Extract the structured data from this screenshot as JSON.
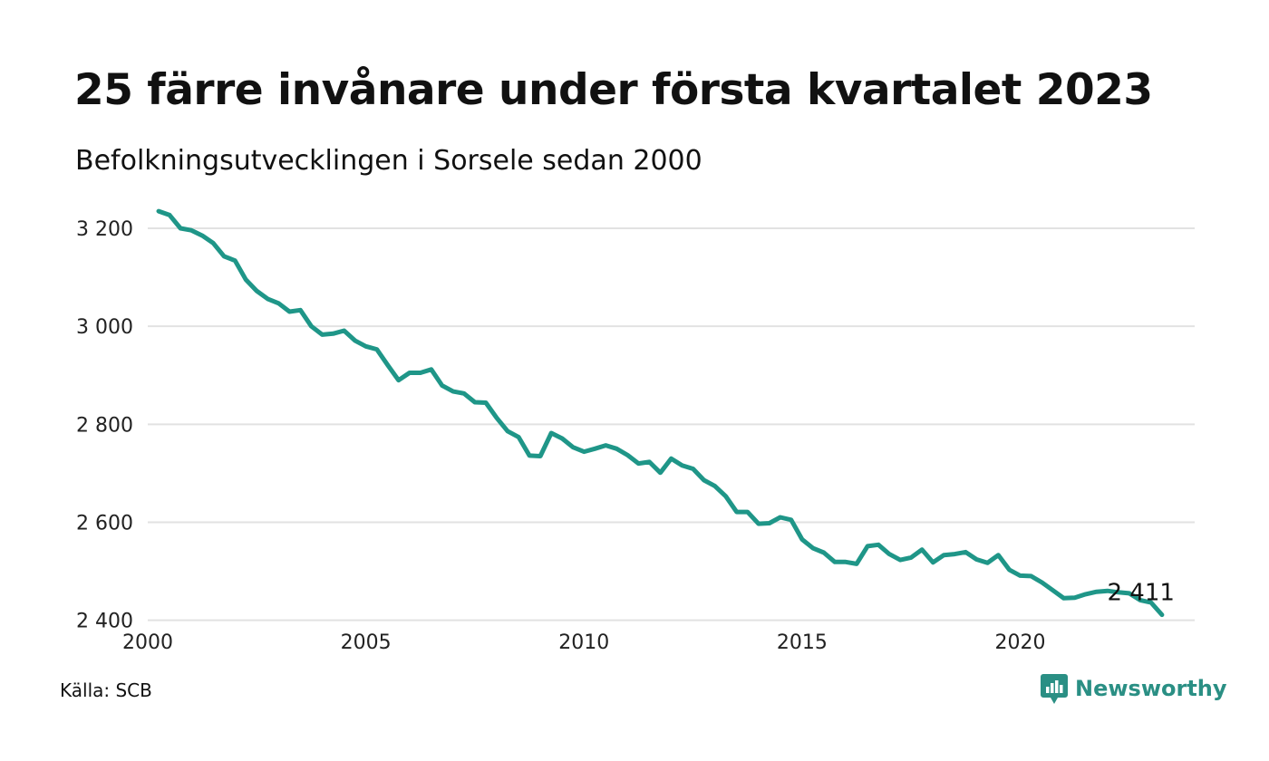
{
  "header": {
    "title": "25 färre invånare under första kvartalet 2023",
    "subtitle": "Befolkningsutvecklingen i Sorsele sedan 2000"
  },
  "footer": {
    "source": "Källa: SCB",
    "brand": "Newsworthy",
    "brand_icon": "newsworthy-logo-icon"
  },
  "colors": {
    "line": "#1f9688",
    "grid": "#e2e2e2",
    "brand": "#2a8f84"
  },
  "chart_data": {
    "type": "line",
    "title": "25 färre invånare under första kvartalet 2023",
    "subtitle": "Befolkningsutvecklingen i Sorsele sedan 2000",
    "xlabel": "",
    "ylabel": "",
    "xlim": [
      2000,
      2024
    ],
    "ylim": [
      2390,
      3250
    ],
    "x_ticks": [
      2000,
      2005,
      2010,
      2015,
      2020
    ],
    "x_tick_labels": [
      "2000",
      "2005",
      "2010",
      "2015",
      "2020"
    ],
    "y_ticks": [
      2400,
      2600,
      2800,
      3000,
      3200
    ],
    "y_tick_labels": [
      "2 400",
      "2 600",
      "2 800",
      "3 000",
      "3 200"
    ],
    "grid": "horizontal",
    "legend": "none",
    "end_label": "2 411",
    "series": [
      {
        "x": [
          2000.25,
          2000.5,
          2000.75,
          2001.0,
          2001.25,
          2001.5,
          2001.75,
          2002.0,
          2002.25,
          2002.5,
          2002.75,
          2003.0,
          2003.25,
          2003.5,
          2003.75,
          2004.0,
          2004.25,
          2004.5,
          2004.75,
          2005.0,
          2005.25,
          2005.5,
          2005.75,
          2006.0,
          2006.25,
          2006.5,
          2006.75,
          2007.0,
          2007.25,
          2007.5,
          2007.75,
          2008.0,
          2008.25,
          2008.5,
          2008.75,
          2009.0,
          2009.25,
          2009.5,
          2009.75,
          2010.0,
          2010.25,
          2010.5,
          2010.75,
          2011.0,
          2011.25,
          2011.5,
          2011.75,
          2012.0,
          2012.25,
          2012.5,
          2012.75,
          2013.0,
          2013.25,
          2013.5,
          2013.75,
          2014.0,
          2014.25,
          2014.5,
          2014.75,
          2015.0,
          2015.25,
          2015.5,
          2015.75,
          2016.0,
          2016.25,
          2016.5,
          2016.75,
          2017.0,
          2017.25,
          2017.5,
          2017.75,
          2018.0,
          2018.25,
          2018.5,
          2018.75,
          2019.0,
          2019.25,
          2019.5,
          2019.75,
          2020.0,
          2020.25,
          2020.5,
          2020.75,
          2021.0,
          2021.25,
          2021.5,
          2021.75,
          2022.0,
          2022.25,
          2022.5,
          2022.75,
          2023.0,
          2023.25
        ],
        "values": [
          3235,
          3227,
          3200,
          3196,
          3185,
          3170,
          3143,
          3134,
          3095,
          3072,
          3056,
          3047,
          3030,
          3033,
          3000,
          2983,
          2985,
          2991,
          2971,
          2959,
          2953,
          2921,
          2890,
          2905,
          2905,
          2912,
          2879,
          2867,
          2863,
          2845,
          2844,
          2813,
          2786,
          2774,
          2736,
          2735,
          2782,
          2771,
          2753,
          2744,
          2750,
          2757,
          2750,
          2737,
          2720,
          2723,
          2701,
          2730,
          2716,
          2709,
          2686,
          2674,
          2653,
          2621,
          2621,
          2597,
          2598,
          2610,
          2605,
          2565,
          2547,
          2538,
          2519,
          2519,
          2515,
          2551,
          2554,
          2535,
          2523,
          2528,
          2544,
          2518,
          2533,
          2535,
          2539,
          2524,
          2517,
          2533,
          2503,
          2491,
          2490,
          2477,
          2461,
          2445,
          2446,
          2453,
          2458,
          2460,
          2457,
          2455,
          2441,
          2436,
          2411
        ]
      }
    ]
  }
}
